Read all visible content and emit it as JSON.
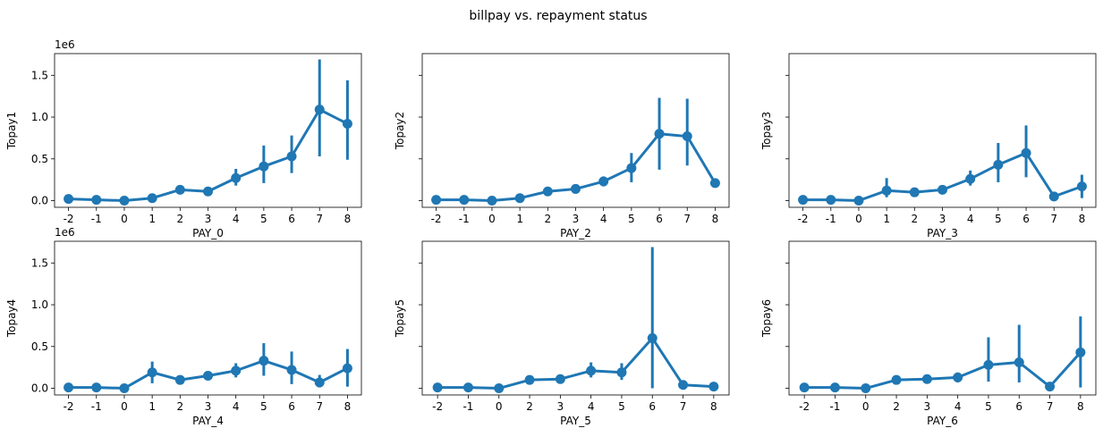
{
  "chart_data": {
    "suptitle": "billpay vs. repayment status",
    "type": "pointplot",
    "color": "#1f77b4",
    "sharey": true,
    "ylim": [
      -0.08,
      1.76
    ],
    "yticks": [
      0.0,
      0.5,
      1.0,
      1.5
    ],
    "ytick_labels": [
      "0.0",
      "0.5",
      "1.0",
      "1.5"
    ],
    "y_offset_label": "1e6",
    "grid": false,
    "legend": "none",
    "panels": [
      {
        "xlabel": "PAY_0",
        "ylabel": "Topay1",
        "categories": [
          "-2",
          "-1",
          "0",
          "1",
          "2",
          "3",
          "4",
          "5",
          "6",
          "7",
          "8"
        ],
        "values": [
          0.02,
          0.01,
          0.0,
          0.03,
          0.13,
          0.11,
          0.27,
          0.41,
          0.53,
          1.09,
          0.92
        ],
        "ci_low": [
          null,
          null,
          null,
          null,
          null,
          null,
          0.18,
          0.21,
          0.33,
          0.53,
          0.49
        ],
        "ci_high": [
          null,
          null,
          null,
          null,
          null,
          null,
          0.38,
          0.66,
          0.78,
          1.69,
          1.44
        ]
      },
      {
        "xlabel": "PAY_2",
        "ylabel": "Topay2",
        "categories": [
          "-2",
          "-1",
          "0",
          "1",
          "2",
          "3",
          "4",
          "5",
          "6",
          "7",
          "8"
        ],
        "values": [
          0.01,
          0.01,
          0.0,
          0.03,
          0.11,
          0.14,
          0.23,
          0.39,
          0.8,
          0.77,
          0.21
        ],
        "ci_low": [
          null,
          null,
          null,
          null,
          null,
          null,
          0.17,
          0.22,
          0.37,
          0.42,
          null
        ],
        "ci_high": [
          null,
          null,
          null,
          null,
          null,
          null,
          0.29,
          0.57,
          1.23,
          1.22,
          null
        ]
      },
      {
        "xlabel": "PAY_3",
        "ylabel": "Topay3",
        "categories": [
          "-2",
          "-1",
          "0",
          "1",
          "2",
          "3",
          "4",
          "5",
          "6",
          "7",
          "8"
        ],
        "values": [
          0.01,
          0.01,
          0.0,
          0.12,
          0.1,
          0.13,
          0.26,
          0.43,
          0.57,
          0.05,
          0.17
        ],
        "ci_low": [
          null,
          null,
          null,
          0.04,
          null,
          null,
          0.18,
          0.22,
          0.28,
          null,
          0.03
        ],
        "ci_high": [
          null,
          null,
          null,
          0.27,
          null,
          null,
          0.36,
          0.69,
          0.9,
          null,
          0.31
        ]
      },
      {
        "xlabel": "PAY_4",
        "ylabel": "Topay4",
        "categories": [
          "-2",
          "-1",
          "0",
          "1",
          "2",
          "3",
          "4",
          "5",
          "6",
          "7",
          "8"
        ],
        "values": [
          0.01,
          0.01,
          0.0,
          0.19,
          0.1,
          0.15,
          0.21,
          0.33,
          0.22,
          0.07,
          0.24
        ],
        "ci_low": [
          null,
          null,
          null,
          0.06,
          null,
          null,
          0.13,
          0.15,
          0.05,
          0.01,
          0.02
        ],
        "ci_high": [
          null,
          null,
          null,
          0.32,
          null,
          null,
          0.3,
          0.54,
          0.44,
          0.16,
          0.47
        ]
      },
      {
        "xlabel": "PAY_5",
        "ylabel": "Topay5",
        "categories": [
          "-2",
          "-1",
          "0",
          "2",
          "3",
          "4",
          "5",
          "6",
          "7",
          "8"
        ],
        "values": [
          0.01,
          0.01,
          0.0,
          0.1,
          0.11,
          0.21,
          0.19,
          0.6,
          0.04,
          0.02
        ],
        "ci_low": [
          null,
          null,
          null,
          null,
          null,
          0.13,
          0.1,
          0.0,
          null,
          null
        ],
        "ci_high": [
          null,
          null,
          null,
          null,
          null,
          0.31,
          0.3,
          1.69,
          null,
          null
        ]
      },
      {
        "xlabel": "PAY_6",
        "ylabel": "Topay6",
        "categories": [
          "-2",
          "-1",
          "0",
          "2",
          "3",
          "4",
          "5",
          "6",
          "7",
          "8"
        ],
        "values": [
          0.01,
          0.01,
          0.0,
          0.1,
          0.11,
          0.13,
          0.28,
          0.31,
          0.02,
          0.43
        ],
        "ci_low": [
          null,
          null,
          null,
          null,
          null,
          0.07,
          0.08,
          0.07,
          null,
          0.01
        ],
        "ci_high": [
          null,
          null,
          null,
          null,
          null,
          0.19,
          0.61,
          0.76,
          null,
          0.86
        ]
      }
    ]
  }
}
